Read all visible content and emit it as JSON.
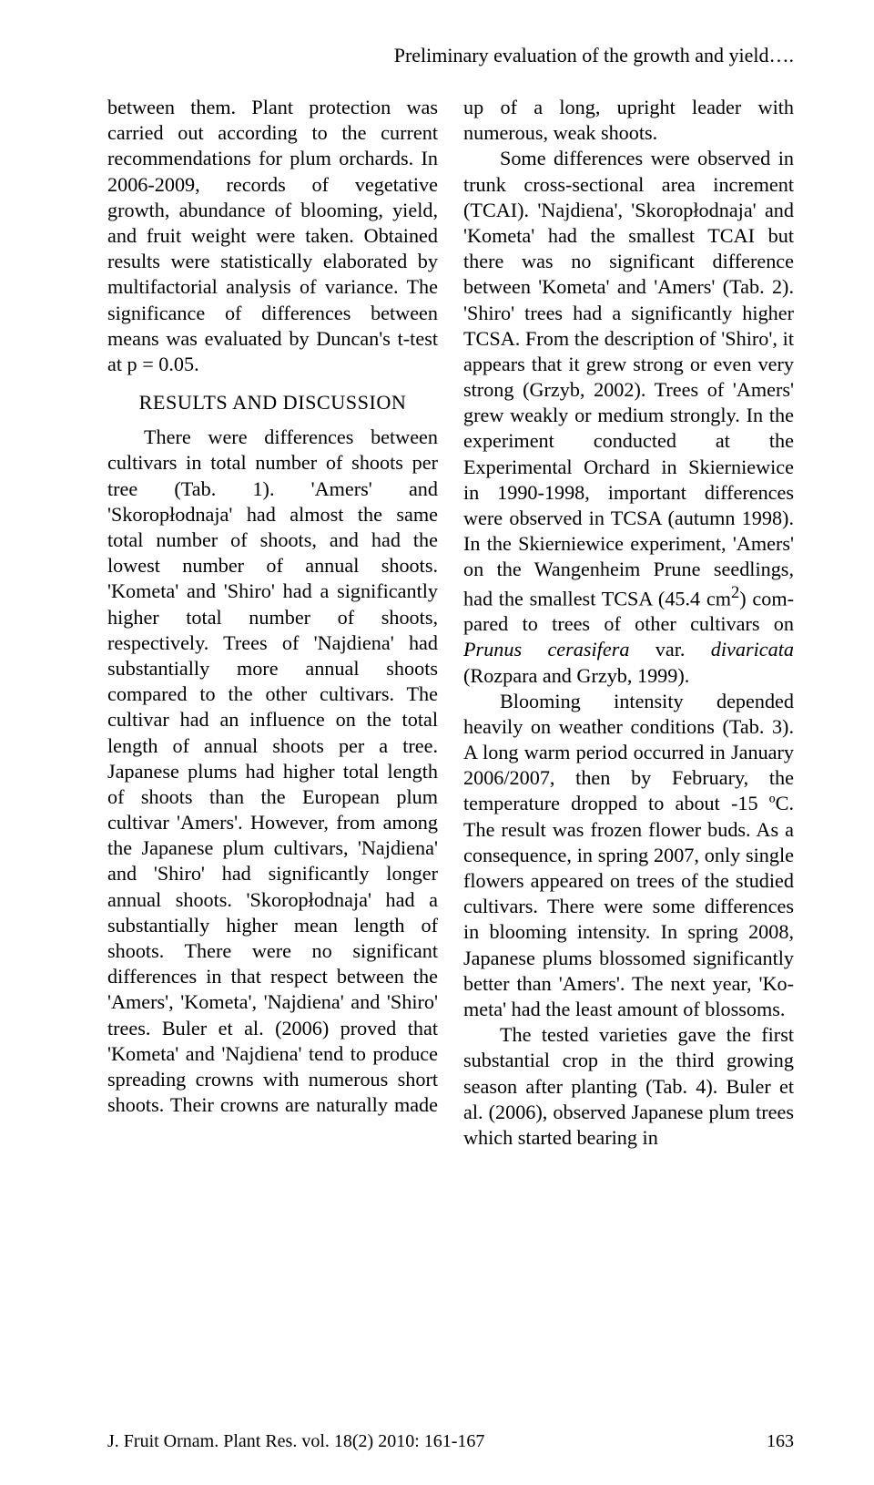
{
  "running_head": "Preliminary evaluation of the growth and yield….",
  "left": {
    "p1": "between them. Plant protection was carried out according to the current recommendations for plum orchards. In 2006-2009, records of vegeta­tive growth, abundance of blooming, yield, and fruit weight were taken. Obtained results were statistically elaborated by multifactorial analysis of variance. The significance of dif­ferences between means was evalu­ated by Duncan's t-test at p = 0.05.",
    "heading": "RESULTS AND DISCUSSION",
    "p2": "There were differences between cultivars in total number of shoots per tree (Tab. 1). 'Amers' and 'Skoropłodnaja' had almost the same total number of shoots, and had the lowest number of annual shoots. 'Kometa' and 'Shiro' had a signifi­cantly higher total number of shoots, respectively. Trees of 'Najdiena' had substantially more annual shoots compared to the other cultivars. The cultivar had an influence on the total length of annual shoots per a tree. Japanese plums had higher total length of shoots than the European plum cultivar 'Amers'. However, from among the Japanese plum culti­vars, 'Najdiena' and 'Shiro' had significantly longer annual shoots. 'Skoropłodnaja' had a substantially higher mean length of shoots. There were no significant differences in that respect between the 'Amers', 'Ko­meta', 'Najdiena' and 'Shiro' trees. Buler et al. (2006) proved that 'Ko­meta' and 'Najdiena' tend to produce spreading crowns with numerous short shoots. Their crowns are naturally made up of a long, upright leader with numerous, weak shoots."
  },
  "right": {
    "p1a": "Some differences were observed in trunk cross-sectional area incre­ment (TCAI). 'Najdiena', 'Skoro­płodnaja' and 'Kometa' had the smallest TCAI but there was no sig­nificant difference between 'Kometa' and 'Amers' (Tab. 2). 'Shiro' trees had a significantly higher TCSA. From the description of 'Shiro', it appears that it grew strong or even very strong (Grzyb, 2002). Trees of 'Amers' grew weakly or medium strongly. In the experiment con­ducted at the Experimental Orchard in Skierniewice in 1990-1998, im­portant differences were observed in TCSA (autumn 1998). In the Skier­niewice experiment, 'Amers' on the Wangenheim Prune seedlings, had the smallest TCSA (45.4 cm",
    "p1_sup": "2",
    "p1b": ") com­pared to trees of other cultivars on ",
    "p1_italic": "Prunus cerasifera",
    "p1c": " var. ",
    "p1_italic2": "divaricata",
    "p1d": " (Rozpara and Grzyb, 1999).",
    "p2": "Blooming intensity depended heavily on weather conditions (Tab. 3). A long warm period oc­curred in January 2006/2007, then by February, the temperature dropped to about -15 ºC. The result was frozen flower buds. As a consequence, in spring 2007, only single flowers ap­peared on trees of the studied cultivars. There were some differences in bloom­ing intensity. In spring 2008, Japanese plums blossomed significantly better than 'Amers'. The next year, 'Ko­meta' had the least amount of blos­soms.",
    "p3": "The tested varieties gave the first substantial crop in the third growing season after planting (Tab. 4). Buler et al. (2006), observed Japanese plum trees which started bearing in"
  },
  "footer": {
    "journal": "J. Fruit Ornam. Plant Res. vol. 18(2) 2010: 161-167",
    "page": "163"
  }
}
